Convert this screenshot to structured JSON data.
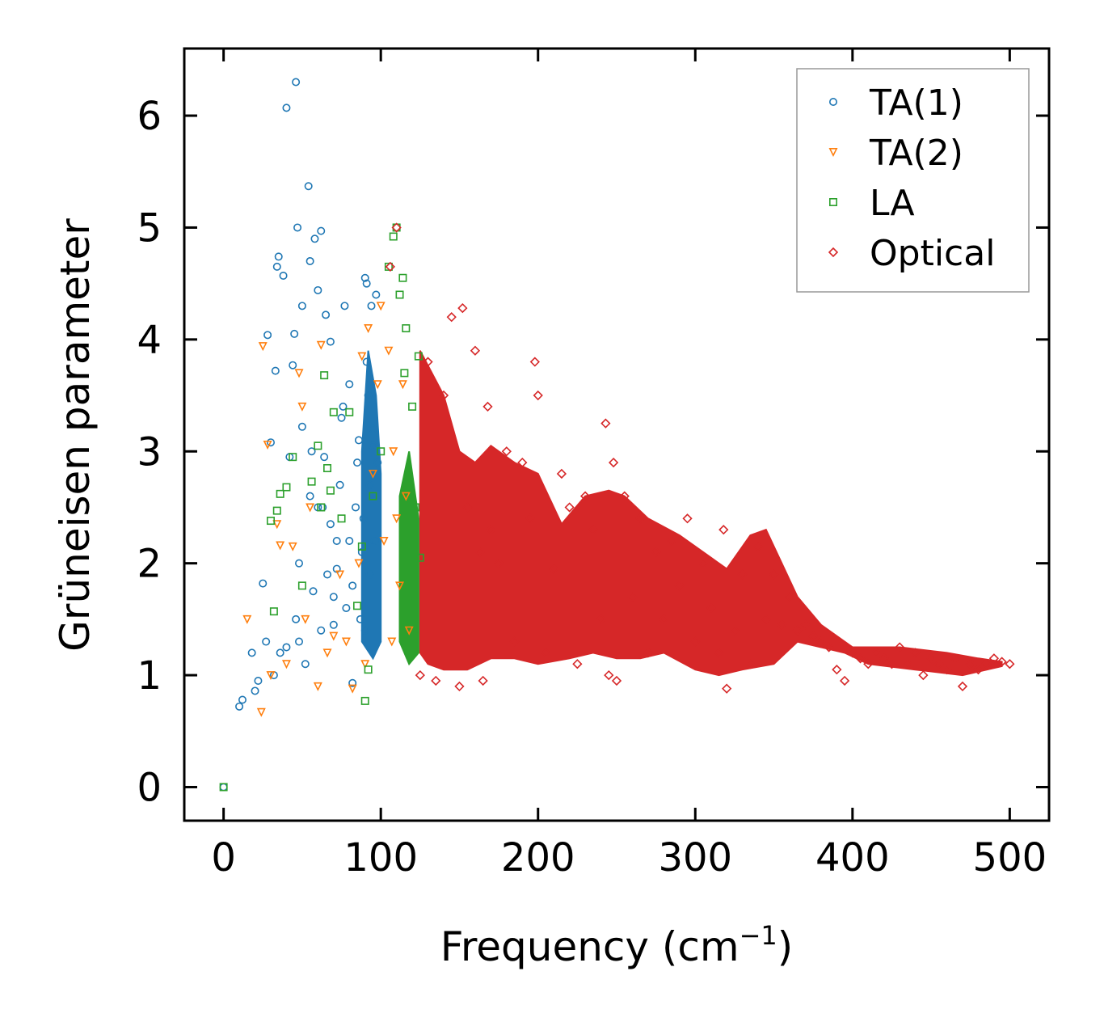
{
  "chart_data": {
    "type": "scatter",
    "title": "",
    "xlabel": "Frequency (cm",
    "xlabel_sup": "−1",
    "xlabel_close": ")",
    "ylabel": "Grüneisen parameter",
    "xlim": [
      -25,
      525
    ],
    "ylim": [
      -0.3,
      6.6
    ],
    "xticks": [
      0,
      100,
      200,
      300,
      400,
      500
    ],
    "yticks": [
      0,
      1,
      2,
      3,
      4,
      5,
      6
    ],
    "grid": false,
    "legend_position": "top-right",
    "series": [
      {
        "name": "TA(1)",
        "marker": "circle",
        "color": "#1f77b4",
        "x": [
          0,
          10,
          12,
          18,
          20,
          22,
          25,
          27,
          28,
          30,
          32,
          33,
          34,
          35,
          36,
          38,
          40,
          42,
          44,
          45,
          46,
          47,
          48,
          50,
          52,
          54,
          55,
          56,
          58,
          60,
          62,
          63,
          65,
          68,
          70,
          72,
          75,
          77,
          80,
          82,
          84,
          86,
          88,
          90,
          90,
          91,
          92,
          93,
          94,
          95,
          96,
          97,
          98,
          40,
          46,
          48,
          50,
          55,
          57,
          60,
          62,
          64,
          66,
          68,
          70,
          72,
          74,
          76,
          78,
          80,
          82,
          85,
          87,
          89,
          91,
          93,
          95
        ],
        "y": [
          0,
          0.72,
          0.78,
          1.2,
          0.86,
          0.95,
          1.82,
          1.3,
          4.04,
          3.08,
          1.0,
          3.72,
          4.65,
          4.74,
          1.2,
          4.57,
          6.07,
          2.95,
          3.77,
          4.05,
          6.3,
          5.0,
          1.3,
          4.3,
          1.1,
          5.37,
          4.7,
          3.0,
          4.9,
          4.44,
          4.97,
          2.5,
          4.22,
          3.98,
          1.7,
          2.2,
          3.3,
          4.3,
          3.6,
          0.93,
          2.5,
          3.1,
          2.1,
          4.55,
          1.4,
          4.5,
          3.5,
          2.7,
          4.3,
          3.2,
          2.2,
          4.4,
          2.9,
          1.25,
          1.5,
          2.0,
          3.22,
          2.6,
          1.75,
          2.5,
          1.4,
          2.95,
          1.9,
          2.35,
          1.45,
          1.95,
          2.7,
          3.4,
          1.6,
          2.2,
          1.8,
          2.9,
          1.5,
          2.4,
          3.8,
          1.9,
          3.05
        ]
      },
      {
        "name": "TA(2)",
        "marker": "triangle-down",
        "color": "#ff7f0e",
        "x": [
          15,
          24,
          25,
          28,
          30,
          34,
          36,
          40,
          44,
          48,
          50,
          52,
          55,
          60,
          62,
          66,
          70,
          74,
          78,
          82,
          86,
          88,
          90,
          92,
          95,
          98,
          100,
          102,
          105,
          107,
          108,
          110,
          112,
          114,
          116,
          118
        ],
        "y": [
          1.5,
          0.67,
          3.94,
          3.06,
          1.0,
          2.35,
          2.16,
          1.1,
          2.15,
          3.7,
          3.4,
          1.5,
          2.5,
          0.9,
          3.95,
          1.2,
          1.35,
          1.9,
          1.3,
          0.88,
          2.0,
          3.85,
          1.1,
          4.1,
          2.8,
          3.6,
          4.3,
          2.2,
          3.9,
          1.3,
          3.0,
          2.4,
          1.8,
          3.6,
          2.6,
          1.4
        ]
      },
      {
        "name": "LA",
        "marker": "square",
        "color": "#2ca02c",
        "x": [
          0,
          30,
          32,
          34,
          36,
          40,
          44,
          50,
          56,
          60,
          62,
          64,
          66,
          68,
          70,
          75,
          80,
          85,
          88,
          90,
          92,
          95,
          100,
          105,
          108,
          110,
          112,
          114,
          115,
          116,
          118,
          120,
          122,
          124,
          125
        ],
        "y": [
          0,
          2.38,
          1.57,
          2.47,
          2.62,
          2.68,
          2.95,
          1.8,
          2.73,
          3.05,
          2.5,
          3.68,
          2.85,
          2.65,
          3.35,
          2.4,
          3.35,
          1.62,
          2.15,
          0.77,
          1.05,
          2.6,
          3.0,
          4.65,
          4.92,
          5.0,
          4.4,
          4.55,
          3.7,
          4.1,
          1.7,
          3.4,
          2.5,
          3.85,
          2.05
        ]
      },
      {
        "name": "Optical",
        "marker": "diamond",
        "color": "#d62728",
        "x": [
          106,
          110,
          125,
          130,
          135,
          140,
          145,
          150,
          152,
          155,
          160,
          163,
          165,
          168,
          170,
          175,
          180,
          185,
          190,
          195,
          198,
          200,
          205,
          210,
          215,
          220,
          225,
          230,
          235,
          240,
          243,
          245,
          248,
          250,
          255,
          260,
          265,
          270,
          275,
          280,
          285,
          290,
          295,
          300,
          305,
          310,
          315,
          318,
          320,
          325,
          330,
          335,
          340,
          345,
          350,
          355,
          360,
          365,
          370,
          375,
          380,
          385,
          390,
          395,
          400,
          405,
          410,
          415,
          420,
          425,
          430,
          435,
          440,
          445,
          450,
          455,
          460,
          465,
          470,
          475,
          480,
          485,
          490,
          495,
          500
        ],
        "y": [
          4.65,
          5.0,
          1.0,
          3.8,
          0.95,
          3.5,
          4.2,
          0.9,
          4.28,
          2.5,
          3.9,
          2.1,
          0.95,
          3.4,
          2.3,
          2.0,
          3.0,
          1.3,
          2.9,
          2.4,
          3.8,
          3.5,
          1.2,
          1.95,
          2.8,
          2.5,
          1.1,
          2.6,
          2.3,
          1.5,
          3.25,
          1.0,
          2.9,
          0.95,
          2.6,
          1.7,
          2.4,
          1.2,
          2.1,
          1.5,
          2.2,
          1.8,
          2.4,
          1.3,
          2.0,
          1.6,
          1.2,
          2.3,
          0.88,
          1.4,
          1.9,
          1.1,
          2.15,
          1.5,
          1.9,
          1.45,
          1.7,
          1.4,
          1.45,
          1.35,
          1.3,
          1.25,
          1.05,
          0.95,
          1.2,
          1.15,
          1.1,
          1.2,
          1.15,
          1.1,
          1.25,
          1.1,
          1.2,
          1.0,
          1.15,
          1.1,
          1.05,
          1.15,
          0.9,
          1.1,
          1.05,
          1.1,
          1.15,
          1.12,
          1.1
        ]
      }
    ],
    "dense_bands": [
      {
        "name": "Optical",
        "color": "#d62728",
        "upper": [
          [
            125,
            3.9
          ],
          [
            140,
            3.5
          ],
          [
            150,
            3.0
          ],
          [
            160,
            2.9
          ],
          [
            170,
            3.05
          ],
          [
            185,
            2.9
          ],
          [
            200,
            2.8
          ],
          [
            215,
            2.35
          ],
          [
            230,
            2.6
          ],
          [
            245,
            2.65
          ],
          [
            255,
            2.6
          ],
          [
            270,
            2.4
          ],
          [
            290,
            2.25
          ],
          [
            310,
            2.05
          ],
          [
            320,
            1.95
          ],
          [
            335,
            2.25
          ],
          [
            345,
            2.3
          ],
          [
            355,
            2.0
          ],
          [
            365,
            1.7
          ],
          [
            380,
            1.45
          ],
          [
            400,
            1.25
          ],
          [
            430,
            1.25
          ],
          [
            460,
            1.2
          ],
          [
            480,
            1.15
          ],
          [
            495,
            1.12
          ]
        ],
        "lower": [
          [
            495,
            1.08
          ],
          [
            470,
            1.0
          ],
          [
            440,
            1.05
          ],
          [
            410,
            1.1
          ],
          [
            395,
            1.2
          ],
          [
            380,
            1.25
          ],
          [
            365,
            1.3
          ],
          [
            350,
            1.1
          ],
          [
            330,
            1.05
          ],
          [
            315,
            1.0
          ],
          [
            300,
            1.05
          ],
          [
            280,
            1.2
          ],
          [
            265,
            1.15
          ],
          [
            250,
            1.15
          ],
          [
            235,
            1.2
          ],
          [
            220,
            1.15
          ],
          [
            200,
            1.1
          ],
          [
            185,
            1.15
          ],
          [
            170,
            1.15
          ],
          [
            155,
            1.05
          ],
          [
            140,
            1.05
          ],
          [
            130,
            1.1
          ],
          [
            125,
            1.2
          ]
        ]
      },
      {
        "name": "TA(1)",
        "color": "#1f77b4",
        "upper": [
          [
            88,
            3.0
          ],
          [
            92,
            3.9
          ],
          [
            97,
            3.5
          ],
          [
            100,
            2.8
          ]
        ],
        "lower": [
          [
            100,
            1.3
          ],
          [
            95,
            1.15
          ],
          [
            88,
            1.3
          ]
        ]
      },
      {
        "name": "LA",
        "color": "#2ca02c",
        "upper": [
          [
            112,
            2.6
          ],
          [
            118,
            3.0
          ],
          [
            124,
            2.4
          ]
        ],
        "lower": [
          [
            124,
            1.2
          ],
          [
            118,
            1.1
          ],
          [
            112,
            1.3
          ]
        ]
      }
    ]
  }
}
